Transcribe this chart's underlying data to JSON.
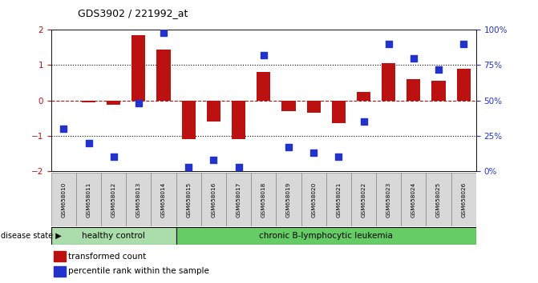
{
  "title": "GDS3902 / 221992_at",
  "samples": [
    "GSM658010",
    "GSM658011",
    "GSM658012",
    "GSM658013",
    "GSM658014",
    "GSM658015",
    "GSM658016",
    "GSM658017",
    "GSM658018",
    "GSM658019",
    "GSM658020",
    "GSM658021",
    "GSM658022",
    "GSM658023",
    "GSM658024",
    "GSM658025",
    "GSM658026"
  ],
  "bar_values": [
    0.0,
    -0.05,
    -0.12,
    1.85,
    1.45,
    -1.1,
    -0.6,
    -1.1,
    0.8,
    -0.3,
    -0.35,
    -0.65,
    0.25,
    1.05,
    0.6,
    0.55,
    0.9
  ],
  "scatter_values": [
    30,
    20,
    10,
    48,
    98,
    3,
    8,
    3,
    82,
    17,
    13,
    10,
    35,
    90,
    80,
    72,
    90
  ],
  "bar_color": "#BB1111",
  "scatter_color": "#2233CC",
  "ylim": [
    -2.0,
    2.0
  ],
  "y2lim": [
    0,
    100
  ],
  "yticks": [
    -2,
    -1,
    0,
    1,
    2
  ],
  "y2ticks": [
    0,
    25,
    50,
    75,
    100
  ],
  "y2ticklabels": [
    "0%",
    "25%",
    "50%",
    "75%",
    "100%"
  ],
  "healthy_count": 5,
  "healthy_label": "healthy control",
  "disease_label": "chronic B-lymphocytic leukemia",
  "legend_bar": "transformed count",
  "legend_scatter": "percentile rank within the sample",
  "disease_state_label": "disease state",
  "healthy_color": "#AADDAA",
  "disease_color": "#66CC66",
  "bar_width": 0.55,
  "scatter_size": 28,
  "bg_color": "#FFFFFF"
}
